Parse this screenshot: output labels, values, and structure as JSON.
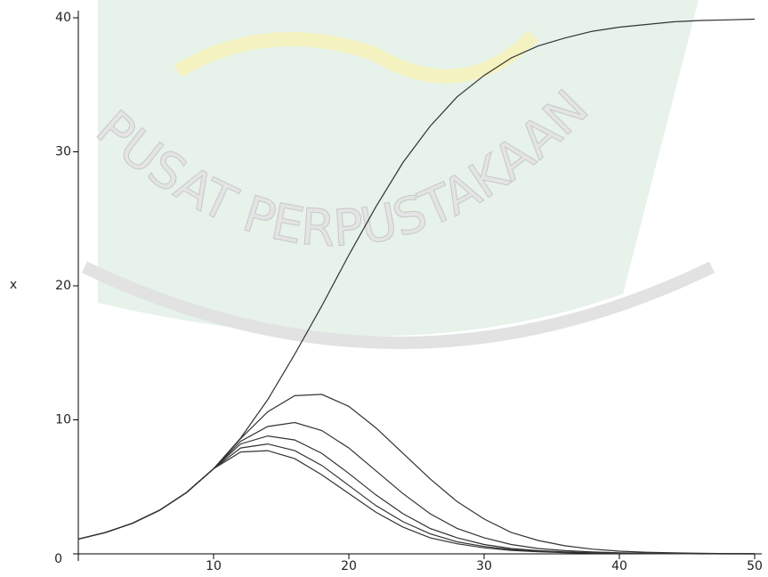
{
  "chart_data": {
    "type": "line",
    "y_label": "x",
    "watermark": "PUSAT PERPUSTAKAAN",
    "xlim": [
      0,
      50
    ],
    "ylim": [
      0,
      40
    ],
    "xticks": [
      10,
      20,
      30,
      40,
      50
    ],
    "yticks": [
      0,
      10,
      20,
      30,
      40
    ],
    "x": [
      0,
      2,
      4,
      6,
      8,
      10,
      12,
      14,
      16,
      18,
      20,
      22,
      24,
      26,
      28,
      30,
      32,
      34,
      36,
      38,
      40,
      42,
      44,
      46,
      48,
      50
    ],
    "series": [
      {
        "color": "#333333",
        "values": [
          1.1,
          1.59,
          2.28,
          3.25,
          4.58,
          6.35,
          8.64,
          11.5,
          14.9,
          18.5,
          22.3,
          25.9,
          29.2,
          31.9,
          34.1,
          35.7,
          37.0,
          37.9,
          38.5,
          39.0,
          39.3,
          39.5,
          39.7,
          39.8,
          39.85,
          39.9
        ]
      },
      {
        "color": "#333333",
        "values": [
          1.1,
          1.59,
          2.28,
          3.25,
          4.58,
          6.35,
          8.6,
          10.6,
          11.8,
          11.9,
          11.0,
          9.4,
          7.5,
          5.6,
          3.9,
          2.6,
          1.6,
          1.0,
          0.6,
          0.35,
          0.2,
          0.12,
          0.07,
          0.04,
          0.02,
          0.01
        ]
      },
      {
        "color": "#333333",
        "values": [
          1.1,
          1.59,
          2.28,
          3.25,
          4.58,
          6.35,
          8.4,
          9.5,
          9.8,
          9.2,
          7.9,
          6.2,
          4.5,
          3.0,
          1.9,
          1.2,
          0.7,
          0.4,
          0.24,
          0.14,
          0.08,
          0.05,
          0.03,
          0.02,
          0.01,
          0.01
        ]
      },
      {
        "color": "#333333",
        "values": [
          1.1,
          1.59,
          2.28,
          3.25,
          4.58,
          6.35,
          8.2,
          8.8,
          8.5,
          7.5,
          6.0,
          4.4,
          3.0,
          1.9,
          1.2,
          0.7,
          0.4,
          0.24,
          0.14,
          0.08,
          0.05,
          0.03,
          0.02,
          0.01,
          0.01,
          0.0
        ]
      },
      {
        "color": "#333333",
        "values": [
          1.1,
          1.59,
          2.28,
          3.25,
          4.58,
          6.35,
          7.9,
          8.2,
          7.7,
          6.6,
          5.1,
          3.6,
          2.4,
          1.5,
          0.9,
          0.55,
          0.32,
          0.19,
          0.11,
          0.06,
          0.04,
          0.02,
          0.01,
          0.01,
          0.0,
          0.0
        ]
      },
      {
        "color": "#333333",
        "values": [
          1.1,
          1.59,
          2.28,
          3.25,
          4.58,
          6.35,
          7.6,
          7.7,
          7.1,
          5.9,
          4.5,
          3.1,
          2.0,
          1.2,
          0.75,
          0.45,
          0.26,
          0.15,
          0.09,
          0.05,
          0.03,
          0.02,
          0.01,
          0.0,
          0.0,
          0.0
        ]
      }
    ]
  }
}
